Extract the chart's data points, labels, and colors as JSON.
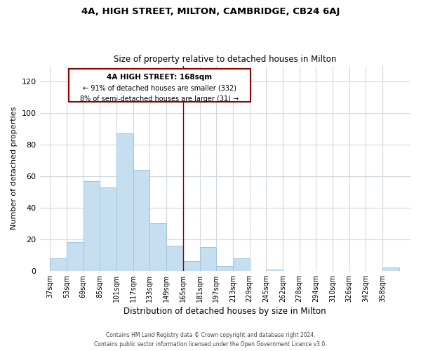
{
  "title": "4A, HIGH STREET, MILTON, CAMBRIDGE, CB24 6AJ",
  "subtitle": "Size of property relative to detached houses in Milton",
  "xlabel": "Distribution of detached houses by size in Milton",
  "ylabel": "Number of detached properties",
  "bar_color": "#c6dff0",
  "bar_edge_color": "#a0c4dc",
  "categories": [
    "37sqm",
    "53sqm",
    "69sqm",
    "85sqm",
    "101sqm",
    "117sqm",
    "133sqm",
    "149sqm",
    "165sqm",
    "181sqm",
    "197sqm",
    "213sqm",
    "229sqm",
    "245sqm",
    "262sqm",
    "278sqm",
    "294sqm",
    "310sqm",
    "326sqm",
    "342sqm",
    "358sqm"
  ],
  "values": [
    8,
    18,
    57,
    53,
    87,
    64,
    30,
    16,
    6,
    15,
    3,
    8,
    0,
    1,
    0,
    0,
    0,
    0,
    0,
    0,
    2
  ],
  "ylim": [
    0,
    130
  ],
  "yticks": [
    0,
    20,
    40,
    60,
    80,
    100,
    120
  ],
  "annotation_title": "4A HIGH STREET: 168sqm",
  "annotation_line1": "← 91% of detached houses are smaller (332)",
  "annotation_line2": "8% of semi-detached houses are larger (31) →",
  "footer1": "Contains HM Land Registry data © Crown copyright and database right 2024.",
  "footer2": "Contains public sector information licensed under the Open Government Licence v3.0.",
  "ref_line_color": "#8b0000",
  "box_edge_color": "#8b0000",
  "grid_color": "#d0d8e0",
  "background_color": "#ffffff"
}
